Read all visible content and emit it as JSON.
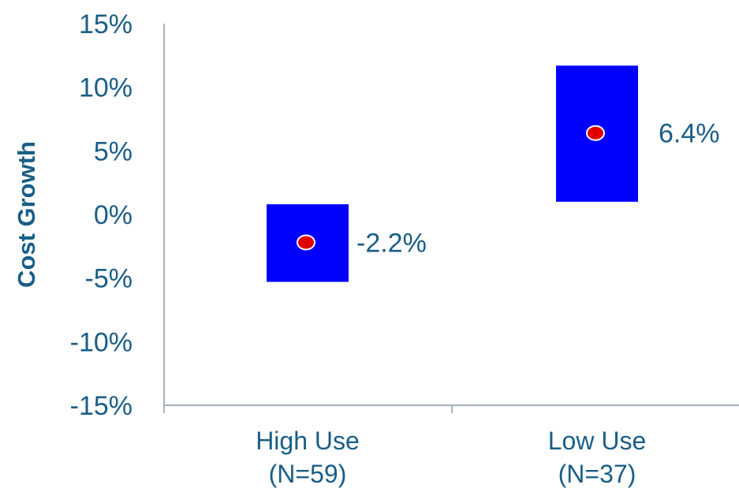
{
  "chart_data": {
    "type": "range",
    "ylabel": "Cost Growth",
    "ylim": [
      -15,
      15
    ],
    "y_ticks": [
      "15%",
      "10%",
      "5%",
      "0%",
      "-5%",
      "-10%",
      "-15%"
    ],
    "y_tick_values": [
      15,
      10,
      5,
      0,
      -5,
      -10,
      -15
    ],
    "categories": [
      {
        "line1": "High Use",
        "line2": "(N=59)"
      },
      {
        "line1": "Low Use",
        "line2": "(N=37)"
      }
    ],
    "ranges": [
      {
        "low": -5.3,
        "high": 0.8,
        "point": -2.2,
        "label": "-2.2%"
      },
      {
        "low": 1.0,
        "high": 11.7,
        "point": 6.4,
        "label": "6.4%"
      }
    ],
    "colors": {
      "box": "#0000ff",
      "point": "#e00000",
      "text": "#1a5e86",
      "axis": "#8c9aa3"
    }
  }
}
